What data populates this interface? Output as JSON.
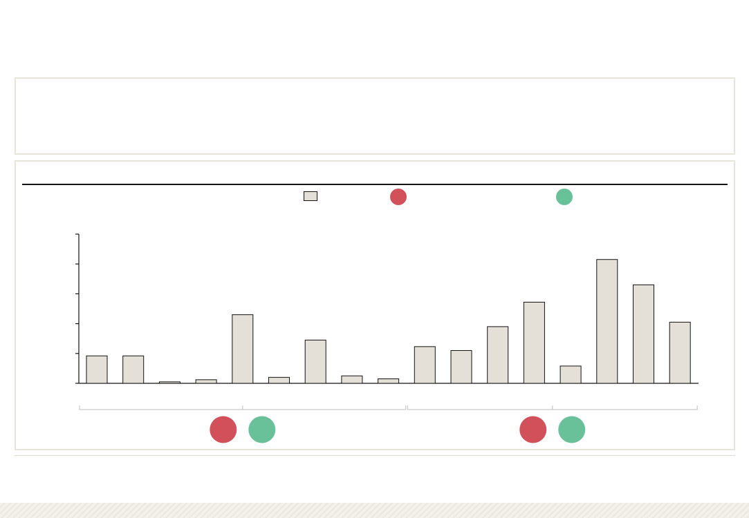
{
  "colors": {
    "bar_fill": "#e4e0d7",
    "bar_stroke": "#111111",
    "red_marker": "#d2505a",
    "green_marker": "#69c199",
    "panel_border": "#e5e3da",
    "bracket": "#c9c9c9"
  },
  "legend": {
    "items": [
      {
        "kind": "bar-swatch",
        "label": ""
      },
      {
        "kind": "red-dot",
        "label": ""
      },
      {
        "kind": "green-dot",
        "label": ""
      }
    ]
  },
  "chart_data": {
    "type": "bar",
    "title": "",
    "xlabel": "",
    "ylabel": "",
    "ylim": [
      0,
      5
    ],
    "y_ticks": [
      0,
      1,
      2,
      3,
      4,
      5
    ],
    "grid": false,
    "legend_placement": "top",
    "categories": [
      "",
      "",
      "",
      "",
      "",
      "",
      "",
      "",
      "",
      "",
      "",
      "",
      "",
      "",
      "",
      "",
      ""
    ],
    "series": [
      {
        "values": [
          0.92,
          0.92,
          0.05,
          0.12,
          2.3,
          0.2,
          1.45,
          0.25,
          0.15,
          1.23,
          1.1,
          1.9,
          2.72,
          0.58,
          4.15,
          3.3,
          2.05
        ]
      }
    ],
    "groups": [
      {
        "label": "",
        "start": 0,
        "end": 8,
        "markers": [
          "red",
          "green"
        ]
      },
      {
        "label": "",
        "start": 9,
        "end": 16,
        "markers": [
          "red",
          "green"
        ]
      }
    ]
  }
}
